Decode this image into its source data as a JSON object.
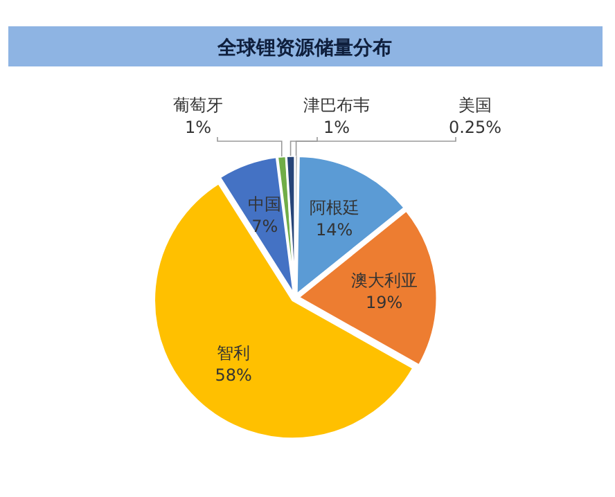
{
  "chart_data": {
    "type": "pie",
    "title": "全球锂资源储量分布",
    "categories": [
      "美国",
      "阿根廷",
      "澳大利亚",
      "智利",
      "中国",
      "葡萄牙",
      "津巴布韦"
    ],
    "values": [
      0.25,
      14,
      19,
      58,
      7,
      1,
      1
    ],
    "value_labels": [
      "0.25%",
      "14%",
      "19%",
      "58%",
      "7%",
      "1%",
      "1%"
    ],
    "colors": [
      "#a5a5a5",
      "#5b9bd5",
      "#ed7d31",
      "#ffc000",
      "#4472c4",
      "#70ad47",
      "#264478"
    ],
    "legend": false
  }
}
